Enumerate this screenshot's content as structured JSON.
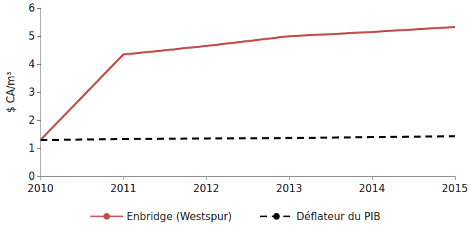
{
  "chart_data": {
    "type": "line",
    "ylabel": "$ CA/m³",
    "categories": [
      "2010",
      "2011",
      "2012",
      "2013",
      "2014",
      "2015"
    ],
    "series": [
      {
        "name": "Enbridge (Westspur)",
        "color": "#c0504d",
        "line_style": "solid",
        "values": [
          1.3,
          4.35,
          4.65,
          5.0,
          5.15,
          5.33
        ]
      },
      {
        "name": "Déflateur du PIB",
        "color": "#000000",
        "line_style": "dashed",
        "values": [
          1.3,
          1.33,
          1.35,
          1.37,
          1.4,
          1.43
        ]
      }
    ],
    "ylim": [
      0,
      6
    ],
    "yticks": [
      0,
      1,
      2,
      3,
      4,
      5,
      6
    ],
    "grid": false,
    "legend": "bottom"
  }
}
